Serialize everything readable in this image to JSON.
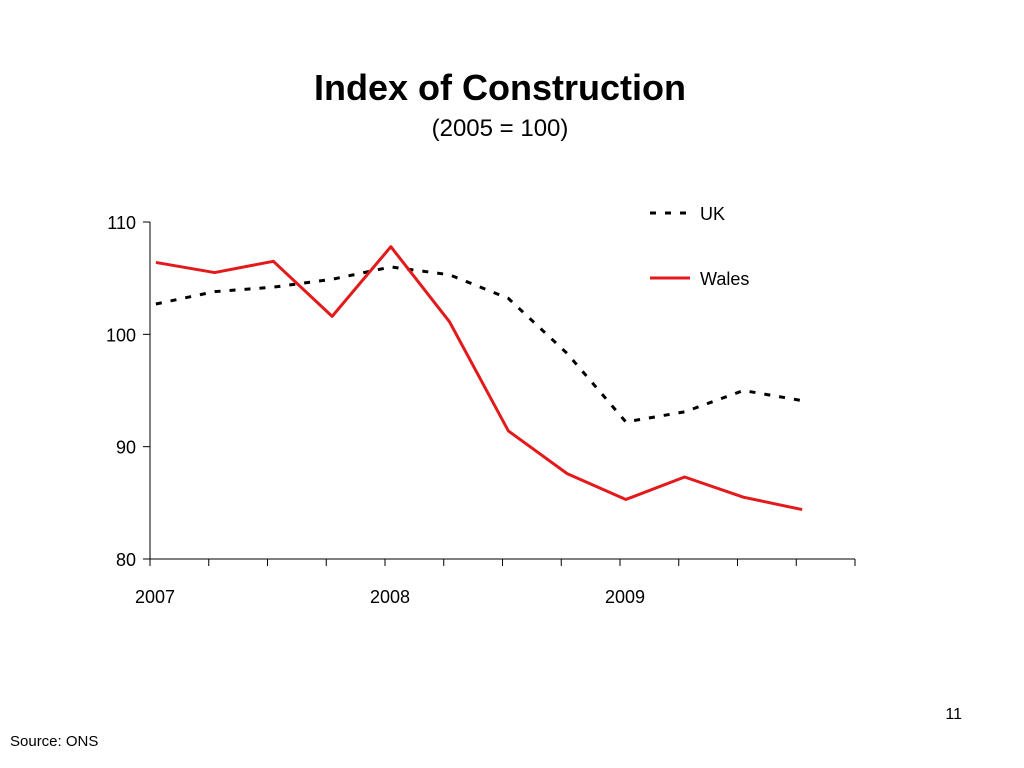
{
  "page_number": "11",
  "source": "Source: ONS",
  "chart_data": {
    "type": "line",
    "title": "Index of Construction",
    "subtitle": "(2005 = 100)",
    "xlabel": "",
    "ylabel": "",
    "ylim": [
      80,
      110
    ],
    "y_ticks": [
      "80",
      "90",
      "100",
      "110"
    ],
    "x": [
      "2007 Q1",
      "2007 Q2",
      "2007 Q3",
      "2007 Q4",
      "2008 Q1",
      "2008 Q2",
      "2008 Q3",
      "2008 Q4",
      "2009 Q1",
      "2009 Q2",
      "2009 Q3",
      "2009 Q4"
    ],
    "x_tick_labels": [
      "2007",
      "",
      "",
      "",
      "2008",
      "",
      "",
      "",
      "2009",
      "",
      "",
      ""
    ],
    "grid": false,
    "legend_position": "top-right",
    "series": [
      {
        "name": "UK",
        "color": "#000000",
        "dash": "dotted",
        "values": [
          102.7,
          103.8,
          104.2,
          104.9,
          106.0,
          105.3,
          103.2,
          98.3,
          92.2,
          93.1,
          95.0,
          94.1
        ]
      },
      {
        "name": "Wales",
        "color": "#e31a1c",
        "dash": "solid",
        "values": [
          106.4,
          105.5,
          106.5,
          101.6,
          107.8,
          101.1,
          91.4,
          87.6,
          85.3,
          87.3,
          85.5,
          84.4
        ]
      }
    ]
  }
}
